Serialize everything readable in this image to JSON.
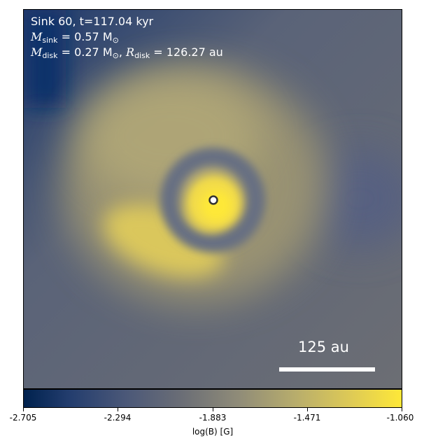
{
  "info": {
    "line1": "Sink 60, t=117.04 kyr",
    "m_sink_symbol": "M",
    "m_sink_sub": "sink",
    "m_sink_value": " = 0.57 M",
    "m_sink_unit_sub": "⊙",
    "m_disk_symbol": "M",
    "m_disk_sub": "disk",
    "m_disk_value": " = 0.27 M",
    "m_disk_unit_sub": "⊙",
    "r_disk_symbol": "R",
    "r_disk_sub": "disk",
    "r_disk_value": " = 126.27 au"
  },
  "scalebar": {
    "label": "125 au"
  },
  "colorbar": {
    "ticks": [
      "-2.705",
      "-2.294",
      "-1.883",
      "-1.471",
      "-1.060"
    ],
    "label": "log(B) [G]"
  },
  "colors": {
    "low": "#00224e",
    "mid": "#6b6e76",
    "high": "#fee838"
  }
}
